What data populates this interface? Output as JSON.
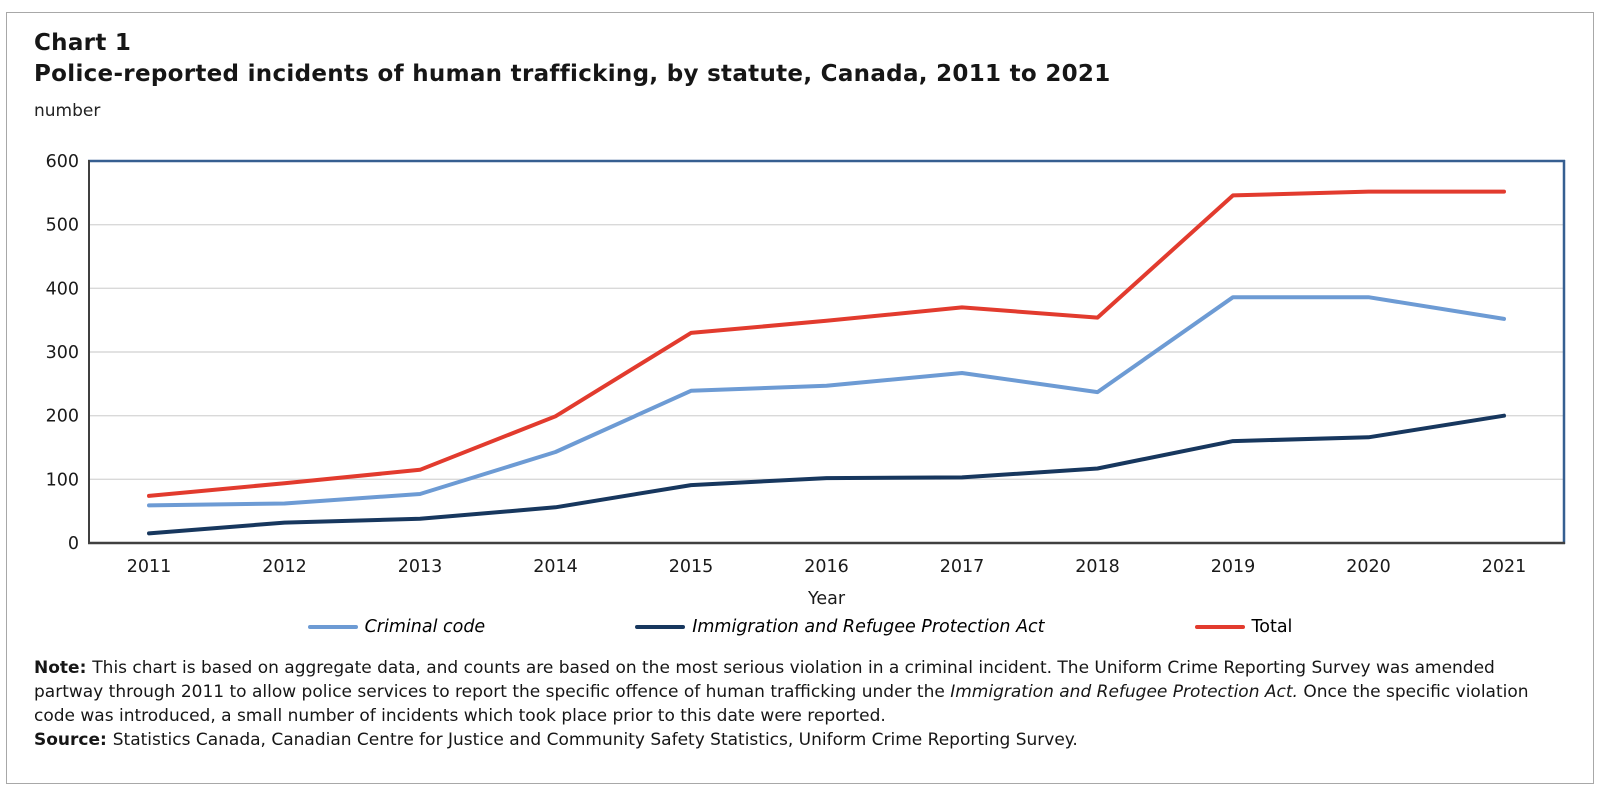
{
  "header": {
    "chart_label": "Chart 1",
    "title": "Police-reported incidents of human trafficking, by statute, Canada, 2011 to 2021"
  },
  "chart_data": {
    "type": "line",
    "title": "Police-reported incidents of human trafficking, by statute, Canada, 2011 to 2021",
    "unit_label": "number",
    "xlabel": "Year",
    "ylabel": "number",
    "ylim": [
      0,
      600
    ],
    "ytick_interval": 100,
    "grid": "horizontal gridlines every 100",
    "legend_position": "bottom",
    "categories": [
      2011,
      2012,
      2013,
      2014,
      2015,
      2016,
      2017,
      2018,
      2019,
      2020,
      2021
    ],
    "series": [
      {
        "name": "Criminal code",
        "color": "#6D9BD4",
        "italic_label": true,
        "values": [
          59,
          62,
          77,
          143,
          239,
          247,
          267,
          237,
          386,
          386,
          352
        ]
      },
      {
        "name": "Immigration and Refugee Protection Act",
        "color": "#17375E",
        "italic_label": true,
        "values": [
          15,
          32,
          38,
          56,
          91,
          102,
          103,
          117,
          160,
          166,
          200
        ]
      },
      {
        "name": "Total",
        "color": "#E23B2E",
        "italic_label": false,
        "values": [
          74,
          94,
          115,
          199,
          330,
          349,
          370,
          354,
          546,
          552,
          552
        ]
      }
    ],
    "style_colors": {
      "gridline": "#D9D9D9",
      "plot_border_top_right": "#365F91",
      "plot_border_left_bottom": "#404040",
      "tick_label": "#1a1a1a"
    }
  },
  "notes": {
    "note_segments": [
      {
        "text": "Note: ",
        "bold": true
      },
      {
        "text": "This chart is based on aggregate data, and counts are based on the most serious violation in a criminal incident. The Uniform Crime Reporting Survey was amended partway through 2011 to allow police services to report the specific offence of human trafficking under the "
      },
      {
        "text": "Immigration and Refugee Protection Act.",
        "italic": true
      },
      {
        "text": " Once the specific violation code was introduced, a small number of incidents which took place prior to this date were reported."
      }
    ],
    "source_segments": [
      {
        "text": "Source: ",
        "bold": true
      },
      {
        "text": "Statistics Canada, Canadian Centre for Justice and Community Safety Statistics, Uniform Crime Reporting Survey."
      }
    ]
  }
}
